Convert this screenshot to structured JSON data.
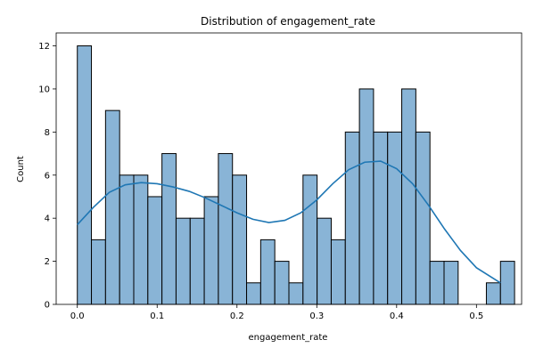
{
  "chart_data": {
    "type": "histogram",
    "title": "Distribution of engagement_rate",
    "xlabel": "engagement_rate",
    "ylabel": "Count",
    "bin_start": 0.0,
    "bin_width": 0.01767,
    "counts": [
      12,
      3,
      9,
      6,
      6,
      5,
      7,
      4,
      4,
      5,
      7,
      6,
      1,
      3,
      2,
      1,
      6,
      4,
      3,
      8,
      10,
      8,
      8,
      10,
      8,
      2,
      2,
      0,
      0,
      1,
      2
    ],
    "xlim": [
      -0.0265,
      0.5566
    ],
    "ylim": [
      0,
      12.6
    ],
    "xticks": [
      0.0,
      0.1,
      0.2,
      0.3,
      0.4,
      0.5
    ],
    "xtick_labels": [
      "0.0",
      "0.1",
      "0.2",
      "0.3",
      "0.4",
      "0.5"
    ],
    "yticks": [
      0,
      2,
      4,
      6,
      8,
      10,
      12
    ],
    "ytick_labels": [
      "0",
      "2",
      "4",
      "6",
      "8",
      "10",
      "12"
    ],
    "kde": {
      "x": [
        0.0,
        0.02,
        0.04,
        0.06,
        0.08,
        0.1,
        0.12,
        0.14,
        0.16,
        0.18,
        0.2,
        0.22,
        0.24,
        0.26,
        0.28,
        0.3,
        0.32,
        0.34,
        0.36,
        0.38,
        0.4,
        0.42,
        0.44,
        0.46,
        0.48,
        0.5,
        0.53
      ],
      "y": [
        3.7,
        4.5,
        5.2,
        5.55,
        5.65,
        5.6,
        5.45,
        5.25,
        4.95,
        4.6,
        4.25,
        3.95,
        3.8,
        3.9,
        4.25,
        4.85,
        5.6,
        6.25,
        6.6,
        6.65,
        6.3,
        5.6,
        4.6,
        3.5,
        2.5,
        1.7,
        1.0
      ]
    },
    "colors": {
      "bar_fill": "#89b4d6",
      "bar_edge": "#000000",
      "kde_line": "#1f77b4"
    }
  }
}
